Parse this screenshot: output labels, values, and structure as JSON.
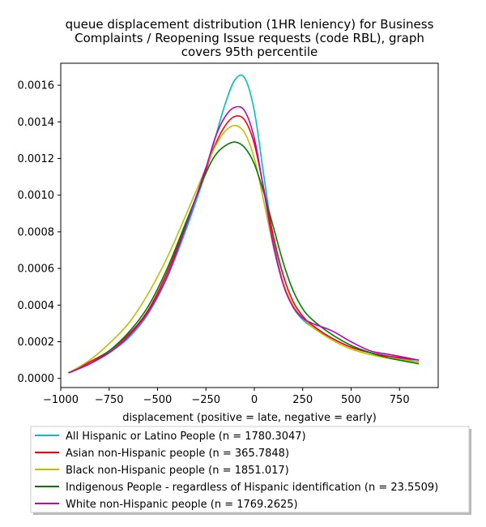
{
  "chart_data": {
    "type": "line",
    "title_lines": [
      "queue displacement distribution (1HR leniency) for Business",
      "Complaints / Reopening Issue  requests (code RBL), graph",
      "covers 95th percentile"
    ],
    "xlabel": "displacement (positive = late, negative = early)",
    "ylabel": "",
    "xlim": [
      -1000,
      950
    ],
    "ylim": [
      -5e-05,
      0.00172
    ],
    "xticks": [
      -1000,
      -750,
      -500,
      -250,
      0,
      250,
      500,
      750
    ],
    "xtick_labels": [
      "−1000",
      "−750",
      "−500",
      "−250",
      "0",
      "250",
      "500",
      "750"
    ],
    "yticks": [
      0,
      0.0002,
      0.0004,
      0.0006,
      0.0008,
      0.001,
      0.0012,
      0.0014,
      0.0016
    ],
    "ytick_labels": [
      "0.0000",
      "0.0002",
      "0.0004",
      "0.0006",
      "0.0008",
      "0.0010",
      "0.0012",
      "0.0014",
      "0.0016"
    ],
    "grid": false,
    "legend_position": "below",
    "x": [
      -960,
      -850,
      -750,
      -650,
      -550,
      -450,
      -350,
      -250,
      -200,
      -150,
      -100,
      -50,
      0,
      50,
      100,
      150,
      200,
      250,
      300,
      400,
      500,
      600,
      700,
      850
    ],
    "series": [
      {
        "name": "All Hispanic or Latino People (n = 1780.3047)",
        "color": "#00bfbf",
        "values": [
          3e-05,
          8e-05,
          0.00014,
          0.00022,
          0.00035,
          0.00055,
          0.00082,
          0.00113,
          0.00132,
          0.0015,
          0.00163,
          0.00164,
          0.00146,
          0.0011,
          0.00075,
          0.00052,
          0.00039,
          0.00032,
          0.00028,
          0.00022,
          0.00017,
          0.00014,
          0.00012,
          9e-05
        ]
      },
      {
        "name": "Asian non-Hispanic people (n = 365.7848)",
        "color": "#ff0000",
        "values": [
          3e-05,
          9e-05,
          0.00015,
          0.00024,
          0.00037,
          0.00058,
          0.00085,
          0.00114,
          0.00128,
          0.00138,
          0.00143,
          0.00141,
          0.00128,
          0.00103,
          0.00077,
          0.00056,
          0.00042,
          0.00034,
          0.00029,
          0.00022,
          0.00017,
          0.00014,
          0.00012,
          0.0001
        ]
      },
      {
        "name": "Black non-Hispanic people (n = 1851.017)",
        "color": "#bfbf00",
        "values": [
          3e-05,
          0.0001,
          0.00019,
          0.0003,
          0.00046,
          0.00066,
          0.0009,
          0.00115,
          0.00127,
          0.00135,
          0.00138,
          0.00134,
          0.0012,
          0.00096,
          0.00071,
          0.00052,
          0.0004,
          0.00033,
          0.00028,
          0.00021,
          0.00016,
          0.00013,
          0.00011,
          9e-05
        ]
      },
      {
        "name": "Indigenous People - regardless of Hispanic identification (n = 23.5509)",
        "color": "#008000",
        "values": [
          3e-05,
          8e-05,
          0.00015,
          0.00025,
          0.00039,
          0.0006,
          0.00086,
          0.00112,
          0.00122,
          0.00127,
          0.00129,
          0.00126,
          0.00117,
          0.00101,
          0.00082,
          0.00063,
          0.00048,
          0.00038,
          0.00032,
          0.00024,
          0.00018,
          0.00014,
          0.00011,
          8e-05
        ]
      },
      {
        "name": "White non-Hispanic people (n = 1769.2625)",
        "color": "#bf00bf",
        "values": [
          3e-05,
          8e-05,
          0.00014,
          0.00023,
          0.00036,
          0.00056,
          0.00084,
          0.00115,
          0.00132,
          0.00143,
          0.00148,
          0.00146,
          0.00131,
          0.00102,
          0.00072,
          0.00051,
          0.00039,
          0.00033,
          0.0003,
          0.00026,
          0.0002,
          0.00015,
          0.00013,
          0.0001
        ]
      }
    ]
  }
}
